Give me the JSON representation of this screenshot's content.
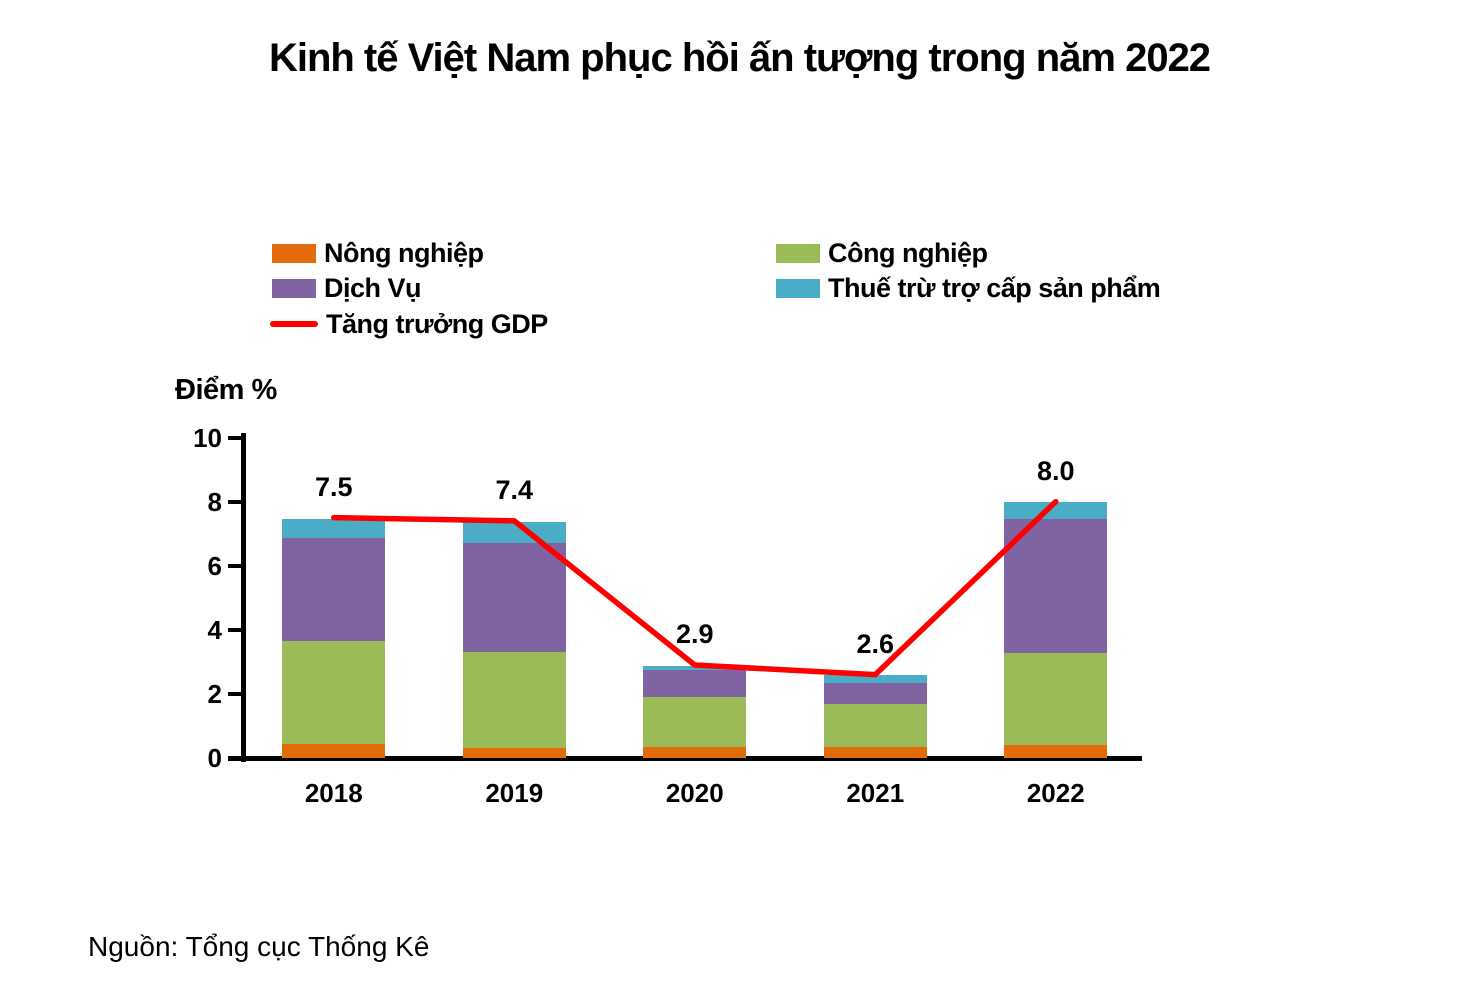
{
  "title": "Kinh tế Việt Nam phục hồi ấn tượng trong năm 2022",
  "source": "Nguồn: Tổng cục Thống Kê",
  "colors": {
    "agriculture": "#E36C0A",
    "industry": "#9BBB59",
    "services": "#8064A2",
    "taxes": "#4BACC6",
    "gdp_line": "#FF0000",
    "axis": "#000000"
  },
  "legend": {
    "items": [
      {
        "label": "Nông nghiệp",
        "color": "#E36C0A",
        "type": "box"
      },
      {
        "label": "Công nghiệp",
        "color": "#9BBB59",
        "type": "box"
      },
      {
        "label": "Dịch Vụ",
        "color": "#8064A2",
        "type": "box"
      },
      {
        "label": "Thuế trừ trợ cấp sản phẩm",
        "color": "#4BACC6",
        "type": "box"
      },
      {
        "label": "Tăng trưởng GDP",
        "color": "#FF0000",
        "type": "line"
      }
    ]
  },
  "chart_data": {
    "type": "bar",
    "subtype": "stacked-column-with-line",
    "title": "Kinh tế Việt Nam phục hồi ấn tượng trong năm 2022",
    "xlabel": "",
    "ylabel": "Điểm %",
    "categories": [
      "2018",
      "2019",
      "2020",
      "2021",
      "2022"
    ],
    "series": [
      {
        "name": "Nông nghiệp",
        "color": "#E36C0A",
        "values": [
          0.45,
          0.3,
          0.35,
          0.35,
          0.4
        ]
      },
      {
        "name": "Công nghiệp",
        "color": "#9BBB59",
        "values": [
          3.2,
          3.0,
          1.55,
          1.35,
          2.87
        ]
      },
      {
        "name": "Dịch Vụ",
        "color": "#8064A2",
        "values": [
          3.2,
          3.4,
          0.85,
          0.65,
          4.18
        ]
      },
      {
        "name": "Thuế trừ trợ cấp sản phẩm",
        "color": "#4BACC6",
        "values": [
          0.6,
          0.65,
          0.12,
          0.23,
          0.55
        ]
      }
    ],
    "line_series": {
      "name": "Tăng trưởng GDP",
      "color": "#FF0000",
      "values": [
        7.5,
        7.4,
        2.9,
        2.6,
        8.0
      ]
    },
    "data_labels": [
      "7.5",
      "7.4",
      "2.9",
      "2.6",
      "8.0"
    ],
    "ylim": [
      0,
      10
    ],
    "yticks": [
      0,
      2,
      4,
      6,
      8,
      10
    ],
    "grid": false,
    "legend_position": "top"
  }
}
